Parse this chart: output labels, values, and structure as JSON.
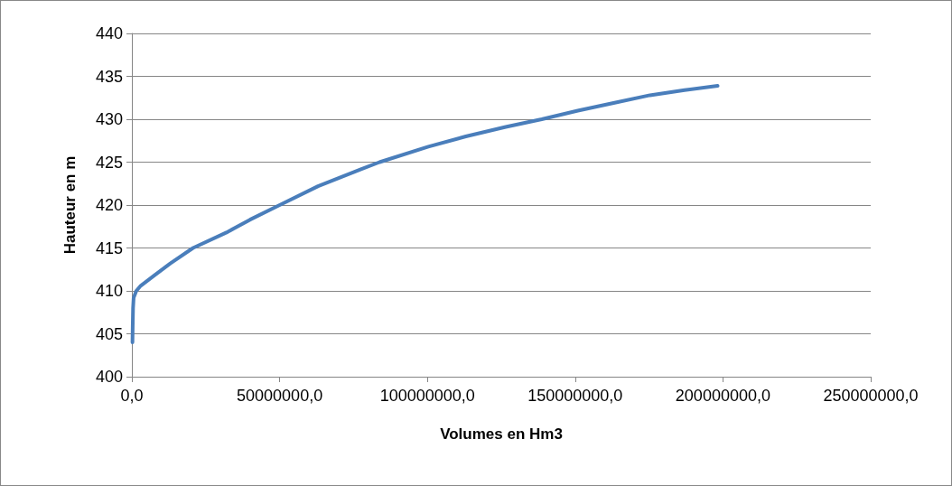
{
  "chart_data": {
    "type": "line",
    "xlabel": "Volumes en Hm3",
    "ylabel": "Hauteur en m",
    "x": [
      200000,
      300000,
      400000,
      600000,
      1500000,
      3000000,
      7600000,
      13000000,
      20700000,
      32000000,
      40000000,
      50000000,
      63000000,
      77700000,
      83800000,
      100300000,
      113000000,
      126500000,
      138700000,
      150900000,
      163000000,
      175300000,
      187000000,
      198200000
    ],
    "series": [
      {
        "color": "#4a7ebb",
        "values": [
          404.0,
          406.2,
          408.0,
          409.2,
          410.0,
          410.6,
          411.8,
          413.2,
          415.0,
          416.8,
          418.3,
          420.0,
          422.2,
          424.2,
          425.0,
          426.8,
          428.0,
          429.1,
          430.0,
          431.0,
          431.9,
          432.8,
          433.4,
          433.9
        ]
      }
    ],
    "xlim": [
      0,
      250000000
    ],
    "xticks": [
      {
        "value": 0,
        "label": "0,0"
      },
      {
        "value": 50000000,
        "label": "50000000,0"
      },
      {
        "value": 100000000,
        "label": "100000000,0"
      },
      {
        "value": 150000000,
        "label": "150000000,0"
      },
      {
        "value": 200000000,
        "label": "200000000,0"
      },
      {
        "value": 250000000,
        "label": "250000000,0"
      }
    ],
    "ylim": [
      400,
      440
    ],
    "yticks": [
      400,
      405,
      410,
      415,
      420,
      425,
      430,
      435,
      440
    ],
    "grid": "y",
    "marker": "none",
    "line_style": "solid"
  }
}
